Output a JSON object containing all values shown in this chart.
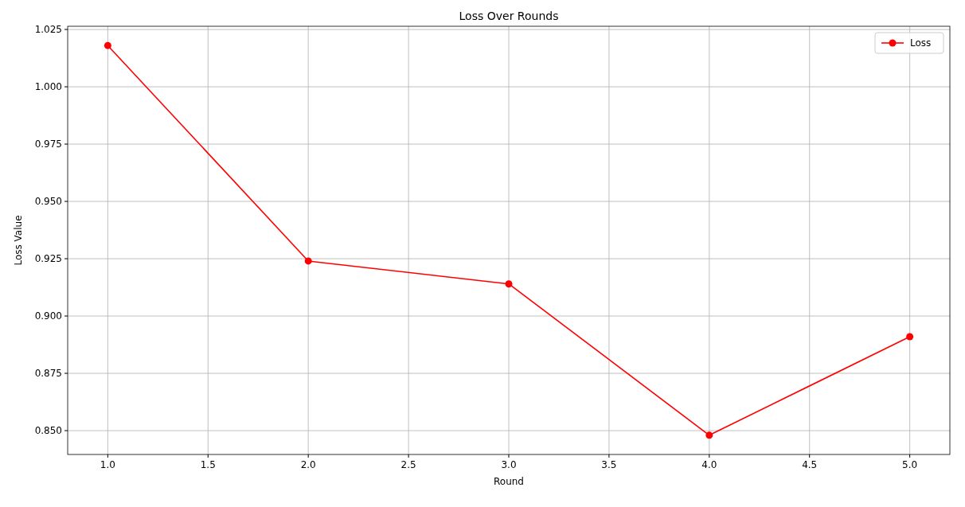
{
  "chart_data": {
    "type": "line",
    "title": "Loss Over Rounds",
    "xlabel": "Round",
    "ylabel": "Loss Value",
    "x": [
      1,
      2,
      3,
      4,
      5
    ],
    "series": [
      {
        "name": "Loss",
        "color": "#ff0000",
        "values": [
          1.018,
          0.924,
          0.914,
          0.848,
          0.891
        ]
      }
    ],
    "xlim": [
      0.8,
      5.2
    ],
    "xticks": [
      {
        "value": 1,
        "label": "1.0"
      },
      {
        "value": 1.5,
        "label": "1.5"
      },
      {
        "value": 2,
        "label": "2.0"
      },
      {
        "value": 2.5,
        "label": "2.5"
      },
      {
        "value": 3,
        "label": "3.0"
      },
      {
        "value": 3.5,
        "label": "3.5"
      },
      {
        "value": 4,
        "label": "4.0"
      },
      {
        "value": 4.5,
        "label": "4.5"
      },
      {
        "value": 5,
        "label": "5.0"
      }
    ],
    "ylim": [
      0.8396,
      1.0264
    ],
    "yticks": [
      {
        "value": 0.85,
        "label": "0.850"
      },
      {
        "value": 0.875,
        "label": "0.875"
      },
      {
        "value": 0.9,
        "label": "0.900"
      },
      {
        "value": 0.925,
        "label": "0.925"
      },
      {
        "value": 0.95,
        "label": "0.950"
      },
      {
        "value": 0.975,
        "label": "0.975"
      },
      {
        "value": 1,
        "label": "1.000"
      },
      {
        "value": 1.025,
        "label": "1.025"
      }
    ],
    "grid": true,
    "legend": "top right",
    "marker": "circle",
    "line_style": "solid"
  }
}
